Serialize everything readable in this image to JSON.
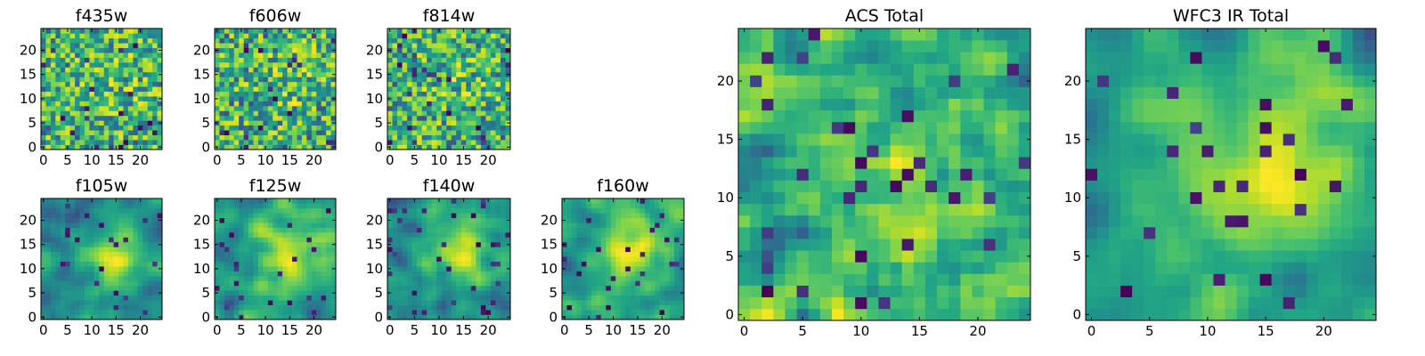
{
  "chart_data": [
    {
      "type": "heatmap",
      "title": "f435w",
      "grid_size": 25,
      "colormap": "viridis",
      "xticks": [
        "0",
        "5",
        "10",
        "15",
        "20"
      ],
      "yticks": [
        "0",
        "5",
        "10",
        "15",
        "20"
      ],
      "xlim": [
        -0.5,
        24.5
      ],
      "ylim": [
        -0.5,
        24.5
      ],
      "value_range": [
        0,
        1
      ],
      "smoothness": 0.15
    },
    {
      "type": "heatmap",
      "title": "f606w",
      "grid_size": 25,
      "colormap": "viridis",
      "xticks": [
        "0",
        "5",
        "10",
        "15",
        "20"
      ],
      "yticks": [
        "0",
        "5",
        "10",
        "15",
        "20"
      ],
      "xlim": [
        -0.5,
        24.5
      ],
      "ylim": [
        -0.5,
        24.5
      ],
      "value_range": [
        0,
        1
      ],
      "smoothness": 0.15
    },
    {
      "type": "heatmap",
      "title": "f814w",
      "grid_size": 25,
      "colormap": "viridis",
      "xticks": [
        "0",
        "5",
        "10",
        "15",
        "20"
      ],
      "yticks": [
        "0",
        "5",
        "10",
        "15",
        "20"
      ],
      "xlim": [
        -0.5,
        24.5
      ],
      "ylim": [
        -0.5,
        24.5
      ],
      "value_range": [
        0,
        1
      ],
      "smoothness": 0.15
    },
    {
      "type": "heatmap",
      "title": "f105w",
      "grid_size": 25,
      "colormap": "viridis",
      "xticks": [
        "0",
        "5",
        "10",
        "15",
        "20"
      ],
      "yticks": [
        "0",
        "5",
        "10",
        "15",
        "20"
      ],
      "xlim": [
        -0.5,
        24.5
      ],
      "ylim": [
        -0.5,
        24.5
      ],
      "value_range": [
        0,
        1
      ],
      "smoothness": 0.55
    },
    {
      "type": "heatmap",
      "title": "f125w",
      "grid_size": 25,
      "colormap": "viridis",
      "xticks": [
        "0",
        "5",
        "10",
        "15",
        "20"
      ],
      "yticks": [
        "0",
        "5",
        "10",
        "15",
        "20"
      ],
      "xlim": [
        -0.5,
        24.5
      ],
      "ylim": [
        -0.5,
        24.5
      ],
      "value_range": [
        0,
        1
      ],
      "smoothness": 0.55
    },
    {
      "type": "heatmap",
      "title": "f140w",
      "grid_size": 25,
      "colormap": "viridis",
      "xticks": [
        "0",
        "5",
        "10",
        "15",
        "20"
      ],
      "yticks": [
        "0",
        "5",
        "10",
        "15",
        "20"
      ],
      "xlim": [
        -0.5,
        24.5
      ],
      "ylim": [
        -0.5,
        24.5
      ],
      "value_range": [
        0,
        1
      ],
      "smoothness": 0.55
    },
    {
      "type": "heatmap",
      "title": "f160w",
      "grid_size": 25,
      "colormap": "viridis",
      "xticks": [
        "0",
        "5",
        "10",
        "15",
        "20"
      ],
      "yticks": [
        "0",
        "5",
        "10",
        "15",
        "20"
      ],
      "xlim": [
        -0.5,
        24.5
      ],
      "ylim": [
        -0.5,
        24.5
      ],
      "value_range": [
        0,
        1
      ],
      "smoothness": 0.55
    },
    {
      "type": "heatmap",
      "title": "ACS Total",
      "grid_size": 25,
      "colormap": "viridis",
      "xticks": [
        "0",
        "5",
        "10",
        "15",
        "20"
      ],
      "yticks": [
        "0",
        "5",
        "10",
        "15",
        "20"
      ],
      "xlim": [
        -0.5,
        24.5
      ],
      "ylim": [
        -0.5,
        24.5
      ],
      "value_range": [
        0,
        1
      ],
      "smoothness": 0.35
    },
    {
      "type": "heatmap",
      "title": "WFC3 IR Total",
      "grid_size": 25,
      "colormap": "viridis",
      "xticks": [
        "0",
        "5",
        "10",
        "15",
        "20"
      ],
      "yticks": [
        "0",
        "5",
        "10",
        "15",
        "20"
      ],
      "xlim": [
        -0.5,
        24.5
      ],
      "ylim": [
        -0.5,
        24.5
      ],
      "value_range": [
        0,
        1
      ],
      "smoothness": 0.75
    }
  ]
}
